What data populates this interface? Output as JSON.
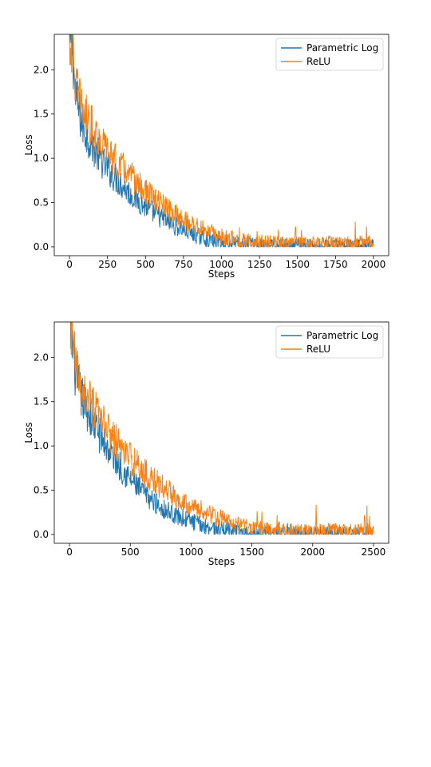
{
  "chart_data": [
    {
      "type": "line",
      "xlabel": "Steps",
      "ylabel": "Loss",
      "xlim": [
        -100,
        2100
      ],
      "ylim": [
        -0.1,
        2.4
      ],
      "xticks": [
        0,
        250,
        500,
        750,
        1000,
        1250,
        1500,
        1750,
        2000
      ],
      "xtick_labels": [
        "0",
        "250",
        "500",
        "750",
        "1000",
        "1250",
        "1500",
        "1750",
        "2000"
      ],
      "yticks": [
        0.0,
        0.5,
        1.0,
        1.5,
        2.0
      ],
      "ytick_labels": [
        "0.0",
        "0.5",
        "1.0",
        "1.5",
        "2.0"
      ],
      "grid": false,
      "legend_position": "top-right",
      "series": [
        {
          "name": "Parametric Log",
          "color": "#1f77b4",
          "x": [
            0,
            20,
            40,
            60,
            80,
            100,
            150,
            200,
            250,
            300,
            400,
            500,
            600,
            700,
            800,
            900,
            1000,
            1100,
            1200,
            1300,
            1400,
            1500,
            1600,
            1700,
            1800,
            1900,
            2000
          ],
          "y": [
            2.3,
            2.25,
            1.7,
            1.55,
            1.4,
            1.3,
            1.15,
            1.0,
            0.88,
            0.78,
            0.6,
            0.45,
            0.33,
            0.23,
            0.15,
            0.09,
            0.05,
            0.03,
            0.02,
            0.015,
            0.01,
            0.01,
            0.01,
            0.01,
            0.01,
            0.01,
            0.01
          ]
        },
        {
          "name": "ReLU",
          "color": "#ff7f0e",
          "x": [
            0,
            20,
            40,
            60,
            80,
            100,
            150,
            200,
            250,
            300,
            400,
            500,
            600,
            700,
            800,
            900,
            1000,
            1100,
            1200,
            1300,
            1400,
            1500,
            1600,
            1700,
            1800,
            1900,
            2000
          ],
          "y": [
            2.3,
            2.28,
            1.85,
            1.7,
            1.6,
            1.5,
            1.35,
            1.2,
            1.08,
            0.98,
            0.8,
            0.62,
            0.48,
            0.36,
            0.26,
            0.18,
            0.12,
            0.08,
            0.06,
            0.05,
            0.04,
            0.04,
            0.04,
            0.04,
            0.04,
            0.04,
            0.04
          ]
        }
      ]
    },
    {
      "type": "line",
      "xlabel": "Steps",
      "ylabel": "Loss",
      "xlim": [
        -125,
        2625
      ],
      "ylim": [
        -0.1,
        2.4
      ],
      "xticks": [
        0,
        500,
        1000,
        1500,
        2000,
        2500
      ],
      "xtick_labels": [
        "0",
        "500",
        "1000",
        "1500",
        "2000",
        "2500"
      ],
      "yticks": [
        0.0,
        0.5,
        1.0,
        1.5,
        2.0
      ],
      "ytick_labels": [
        "0.0",
        "0.5",
        "1.0",
        "1.5",
        "2.0"
      ],
      "grid": false,
      "legend_position": "top-right",
      "series": [
        {
          "name": "Parametric Log",
          "color": "#1f77b4",
          "x": [
            0,
            25,
            50,
            75,
            100,
            150,
            200,
            300,
            400,
            500,
            600,
            700,
            800,
            900,
            1000,
            1100,
            1200,
            1300,
            1400,
            1500,
            1600,
            1700,
            1800,
            2000,
            2200,
            2400,
            2500
          ],
          "y": [
            2.3,
            2.2,
            1.8,
            1.65,
            1.55,
            1.4,
            1.25,
            1.0,
            0.8,
            0.62,
            0.48,
            0.36,
            0.27,
            0.2,
            0.15,
            0.1,
            0.07,
            0.05,
            0.03,
            0.02,
            0.015,
            0.01,
            0.01,
            0.01,
            0.01,
            0.01,
            0.01
          ]
        },
        {
          "name": "ReLU",
          "color": "#ff7f0e",
          "x": [
            0,
            25,
            50,
            75,
            100,
            150,
            200,
            300,
            400,
            500,
            600,
            700,
            800,
            900,
            1000,
            1100,
            1200,
            1300,
            1400,
            1500,
            1600,
            1700,
            1800,
            2000,
            2200,
            2400,
            2500
          ],
          "y": [
            2.3,
            2.25,
            1.9,
            1.75,
            1.65,
            1.52,
            1.4,
            1.2,
            1.02,
            0.86,
            0.72,
            0.6,
            0.5,
            0.41,
            0.33,
            0.26,
            0.2,
            0.15,
            0.11,
            0.08,
            0.06,
            0.05,
            0.04,
            0.04,
            0.04,
            0.04,
            0.04
          ]
        }
      ]
    }
  ]
}
